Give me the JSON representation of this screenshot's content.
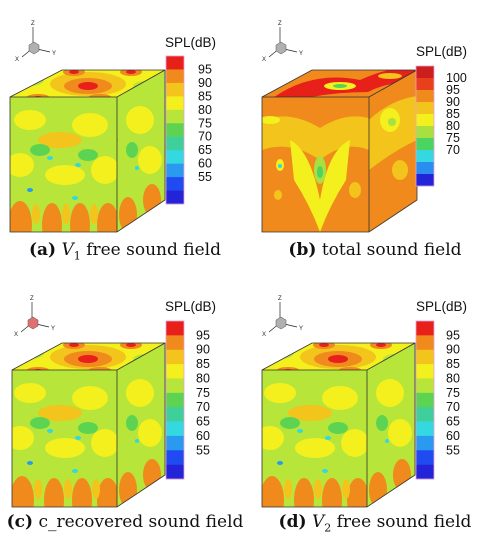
{
  "panels": [
    {
      "id": "a",
      "letter": "(a)",
      "var": "V",
      "sub": "1",
      "text": "free sound field",
      "colorbar": {
        "title": "SPL(dB)",
        "ticks": [
          "95",
          "90",
          "85",
          "80",
          "75",
          "70",
          "65",
          "60",
          "55"
        ],
        "colors": [
          "#e8201a",
          "#f08a1c",
          "#f2c41c",
          "#f3f01d",
          "#b8e53a",
          "#5cd452",
          "#3fcf9a",
          "#33d8e0",
          "#2a9af0",
          "#1f4bf0",
          "#2323d8"
        ]
      }
    },
    {
      "id": "b",
      "letter": "(b)",
      "var": "",
      "sub": "",
      "text": "total sound field",
      "colorbar": {
        "title": "SPL(dB)",
        "ticks": [
          "100",
          "95",
          "90",
          "85",
          "80",
          "75",
          "70"
        ],
        "colors": [
          "#cc1e1a",
          "#e8401a",
          "#f08a1c",
          "#f2c41c",
          "#f3f01d",
          "#a8e040",
          "#4cd460",
          "#33d8e0",
          "#2a8ef0",
          "#2323d8"
        ]
      }
    },
    {
      "id": "c",
      "letter": "(c)",
      "var": "",
      "sub": "",
      "text": "c_recovered sound field",
      "colorbar": {
        "title": "SPL(dB)",
        "ticks": [
          "95",
          "90",
          "85",
          "80",
          "75",
          "70",
          "65",
          "60",
          "55"
        ],
        "colors": [
          "#e8201a",
          "#f08a1c",
          "#f2c41c",
          "#f3f01d",
          "#b8e53a",
          "#5cd452",
          "#3fcf9a",
          "#33d8e0",
          "#2a9af0",
          "#1f4bf0",
          "#2323d8"
        ]
      }
    },
    {
      "id": "d",
      "letter": "(d)",
      "var": "V",
      "sub": "2",
      "text": "free sound field",
      "colorbar": {
        "title": "SPL(dB)",
        "ticks": [
          "95",
          "90",
          "85",
          "80",
          "75",
          "70",
          "65",
          "60",
          "55"
        ],
        "colors": [
          "#e8201a",
          "#f08a1c",
          "#f2c41c",
          "#f3f01d",
          "#b8e53a",
          "#5cd452",
          "#3fcf9a",
          "#33d8e0",
          "#2a9af0",
          "#1f4bf0",
          "#2323d8"
        ]
      }
    }
  ],
  "axes": {
    "z": "Z",
    "x": "X",
    "y": "Y"
  }
}
